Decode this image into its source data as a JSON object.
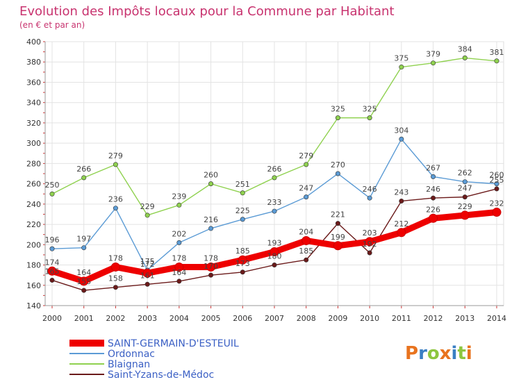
{
  "chart_data": {
    "type": "line",
    "title": "Evolution des Impôts locaux pour la Commune par Habitant",
    "subtitle": "(en € et par an)",
    "xlabel": "",
    "ylabel": "",
    "x": [
      2000,
      2001,
      2002,
      2003,
      2004,
      2005,
      2006,
      2007,
      2008,
      2009,
      2010,
      2011,
      2012,
      2013,
      2014
    ],
    "ylim": [
      140,
      400
    ],
    "yticks": [
      140,
      160,
      180,
      200,
      220,
      240,
      260,
      280,
      300,
      320,
      340,
      360,
      380,
      400
    ],
    "grid": true,
    "legend": "bottom-left",
    "series": [
      {
        "name": "SAINT-GERMAIN-D'ESTEUIL",
        "color": "#ee0000",
        "values": [
          174,
          164,
          178,
          172,
          178,
          178,
          185,
          193,
          204,
          199,
          203,
          212,
          226,
          229,
          232
        ]
      },
      {
        "name": "Ordonnac",
        "color": "#5b9bd5",
        "values": [
          196,
          197,
          236,
          175,
          202,
          216,
          225,
          233,
          247,
          270,
          246,
          304,
          267,
          262,
          260
        ]
      },
      {
        "name": "Blaignan",
        "color": "#8fd14f",
        "values": [
          250,
          266,
          279,
          229,
          239,
          260,
          251,
          266,
          279,
          325,
          325,
          375,
          379,
          384,
          381
        ]
      },
      {
        "name": "Saint-Yzans-de-Médoc",
        "color": "#6b1a1a",
        "values": [
          165,
          155,
          158,
          161,
          164,
          170,
          173,
          180,
          185,
          221,
          192,
          243,
          246,
          247,
          255
        ]
      }
    ]
  },
  "logo": {
    "text": "Proxiti",
    "letter_colors": [
      "#e8731e",
      "#3a7fc4",
      "#8dc63f",
      "#e8731e",
      "#3a7fc4",
      "#8dc63f",
      "#e8731e"
    ]
  }
}
